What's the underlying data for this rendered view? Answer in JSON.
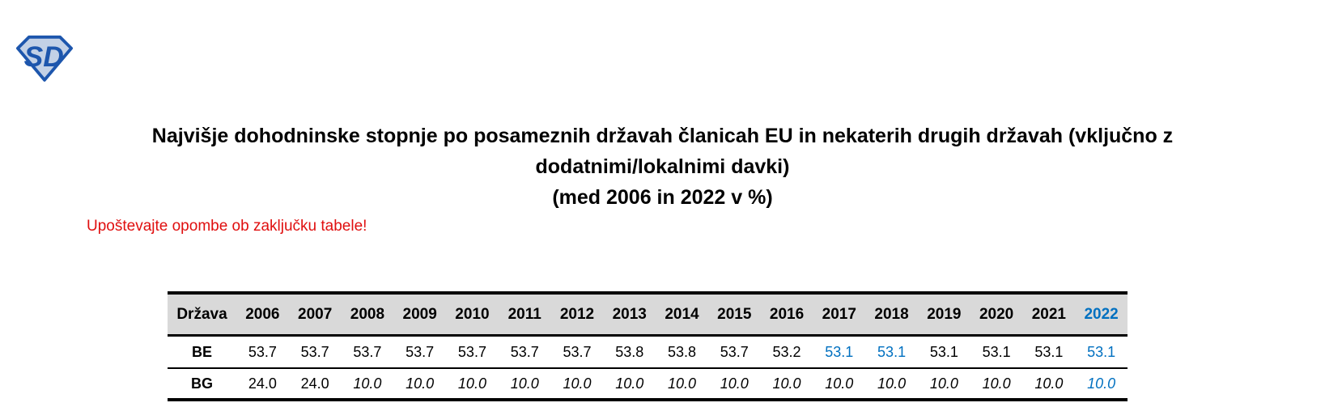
{
  "logo": {
    "letters": "SD"
  },
  "title": {
    "line1": "Najvišje dohodninske stopnje po posameznih državah članicah EU in nekaterih drugih državah (vključno z",
    "line2": "dodatnimi/lokalnimi davki)",
    "line3": "(med 2006 in 2022 v %)"
  },
  "note": "Upoštevajte opombe ob zaključku tabele!",
  "colors": {
    "accent_blue": "#0070C0",
    "note_red": "#e00f0f",
    "header_bg": "#d9d9d9",
    "logo_blue": "#1d56ad",
    "logo_fill": "#c3d1e6"
  },
  "table": {
    "col_header_label": "Država",
    "years": [
      {
        "label": "2006",
        "blue": false
      },
      {
        "label": "2007",
        "blue": false
      },
      {
        "label": "2008",
        "blue": false
      },
      {
        "label": "2009",
        "blue": false
      },
      {
        "label": "2010",
        "blue": false
      },
      {
        "label": "2011",
        "blue": false
      },
      {
        "label": "2012",
        "blue": false
      },
      {
        "label": "2013",
        "blue": false
      },
      {
        "label": "2014",
        "blue": false
      },
      {
        "label": "2015",
        "blue": false
      },
      {
        "label": "2016",
        "blue": false
      },
      {
        "label": "2017",
        "blue": false
      },
      {
        "label": "2018",
        "blue": false
      },
      {
        "label": "2019",
        "blue": false
      },
      {
        "label": "2020",
        "blue": false
      },
      {
        "label": "2021",
        "blue": false
      },
      {
        "label": "2022",
        "blue": true
      }
    ],
    "rows": [
      {
        "label": "BE",
        "cells": [
          {
            "value": "53.7",
            "blue": false,
            "italic": false
          },
          {
            "value": "53.7",
            "blue": false,
            "italic": false
          },
          {
            "value": "53.7",
            "blue": false,
            "italic": false
          },
          {
            "value": "53.7",
            "blue": false,
            "italic": false
          },
          {
            "value": "53.7",
            "blue": false,
            "italic": false
          },
          {
            "value": "53.7",
            "blue": false,
            "italic": false
          },
          {
            "value": "53.7",
            "blue": false,
            "italic": false
          },
          {
            "value": "53.8",
            "blue": false,
            "italic": false
          },
          {
            "value": "53.8",
            "blue": false,
            "italic": false
          },
          {
            "value": "53.7",
            "blue": false,
            "italic": false
          },
          {
            "value": "53.2",
            "blue": false,
            "italic": false
          },
          {
            "value": "53.1",
            "blue": true,
            "italic": false
          },
          {
            "value": "53.1",
            "blue": true,
            "italic": false
          },
          {
            "value": "53.1",
            "blue": false,
            "italic": false
          },
          {
            "value": "53.1",
            "blue": false,
            "italic": false
          },
          {
            "value": "53.1",
            "blue": false,
            "italic": false
          },
          {
            "value": "53.1",
            "blue": true,
            "italic": false
          }
        ]
      },
      {
        "label": "BG",
        "cells": [
          {
            "value": "24.0",
            "blue": false,
            "italic": false
          },
          {
            "value": "24.0",
            "blue": false,
            "italic": false
          },
          {
            "value": "10.0",
            "blue": false,
            "italic": true
          },
          {
            "value": "10.0",
            "blue": false,
            "italic": true
          },
          {
            "value": "10.0",
            "blue": false,
            "italic": true
          },
          {
            "value": "10.0",
            "blue": false,
            "italic": true
          },
          {
            "value": "10.0",
            "blue": false,
            "italic": true
          },
          {
            "value": "10.0",
            "blue": false,
            "italic": true
          },
          {
            "value": "10.0",
            "blue": false,
            "italic": true
          },
          {
            "value": "10.0",
            "blue": false,
            "italic": true
          },
          {
            "value": "10.0",
            "blue": false,
            "italic": true
          },
          {
            "value": "10.0",
            "blue": false,
            "italic": true
          },
          {
            "value": "10.0",
            "blue": false,
            "italic": true
          },
          {
            "value": "10.0",
            "blue": false,
            "italic": true
          },
          {
            "value": "10.0",
            "blue": false,
            "italic": true
          },
          {
            "value": "10.0",
            "blue": false,
            "italic": true
          },
          {
            "value": "10.0",
            "blue": true,
            "italic": true
          }
        ]
      }
    ]
  }
}
